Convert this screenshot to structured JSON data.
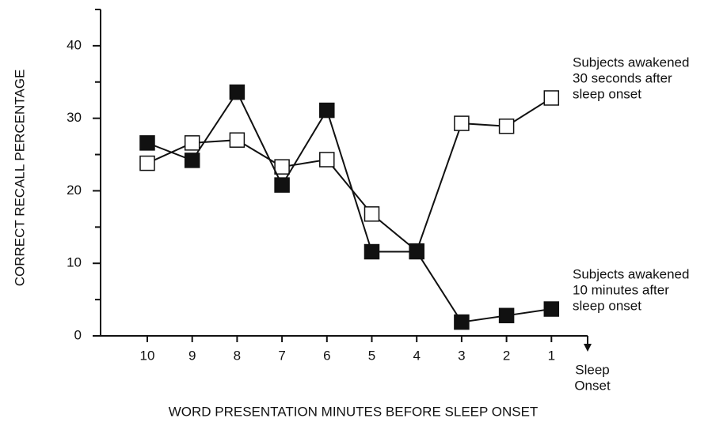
{
  "chart_data": {
    "type": "line",
    "xlabel": "WORD PRESENTATION MINUTES BEFORE SLEEP ONSET",
    "ylabel": "CORRECT RECALL PERCENTAGE",
    "categories": [
      "10",
      "9",
      "8",
      "7",
      "6",
      "5",
      "4",
      "3",
      "2",
      "1"
    ],
    "end_label": [
      "Sleep",
      "Onset"
    ],
    "ylim": [
      0,
      45
    ],
    "yticks": [
      0,
      10,
      20,
      30,
      40
    ],
    "yminor_ticks": [
      5,
      15,
      25,
      35,
      45
    ],
    "series": [
      {
        "name": [
          "Subjects awakened",
          "30 seconds after",
          "sleep onset"
        ],
        "color": "#111",
        "marker_fill": "#ffffff",
        "values": [
          23.8,
          26.6,
          27.0,
          23.3,
          24.3,
          16.8,
          11.7,
          29.3,
          28.9,
          32.8
        ]
      },
      {
        "name": [
          "Subjects awakened",
          "10 minutes after",
          "sleep onset"
        ],
        "color": "#111",
        "marker_fill": "#111111",
        "values": [
          26.6,
          24.2,
          33.6,
          20.8,
          31.1,
          11.6,
          11.6,
          1.9,
          2.8,
          3.7
        ]
      }
    ]
  }
}
